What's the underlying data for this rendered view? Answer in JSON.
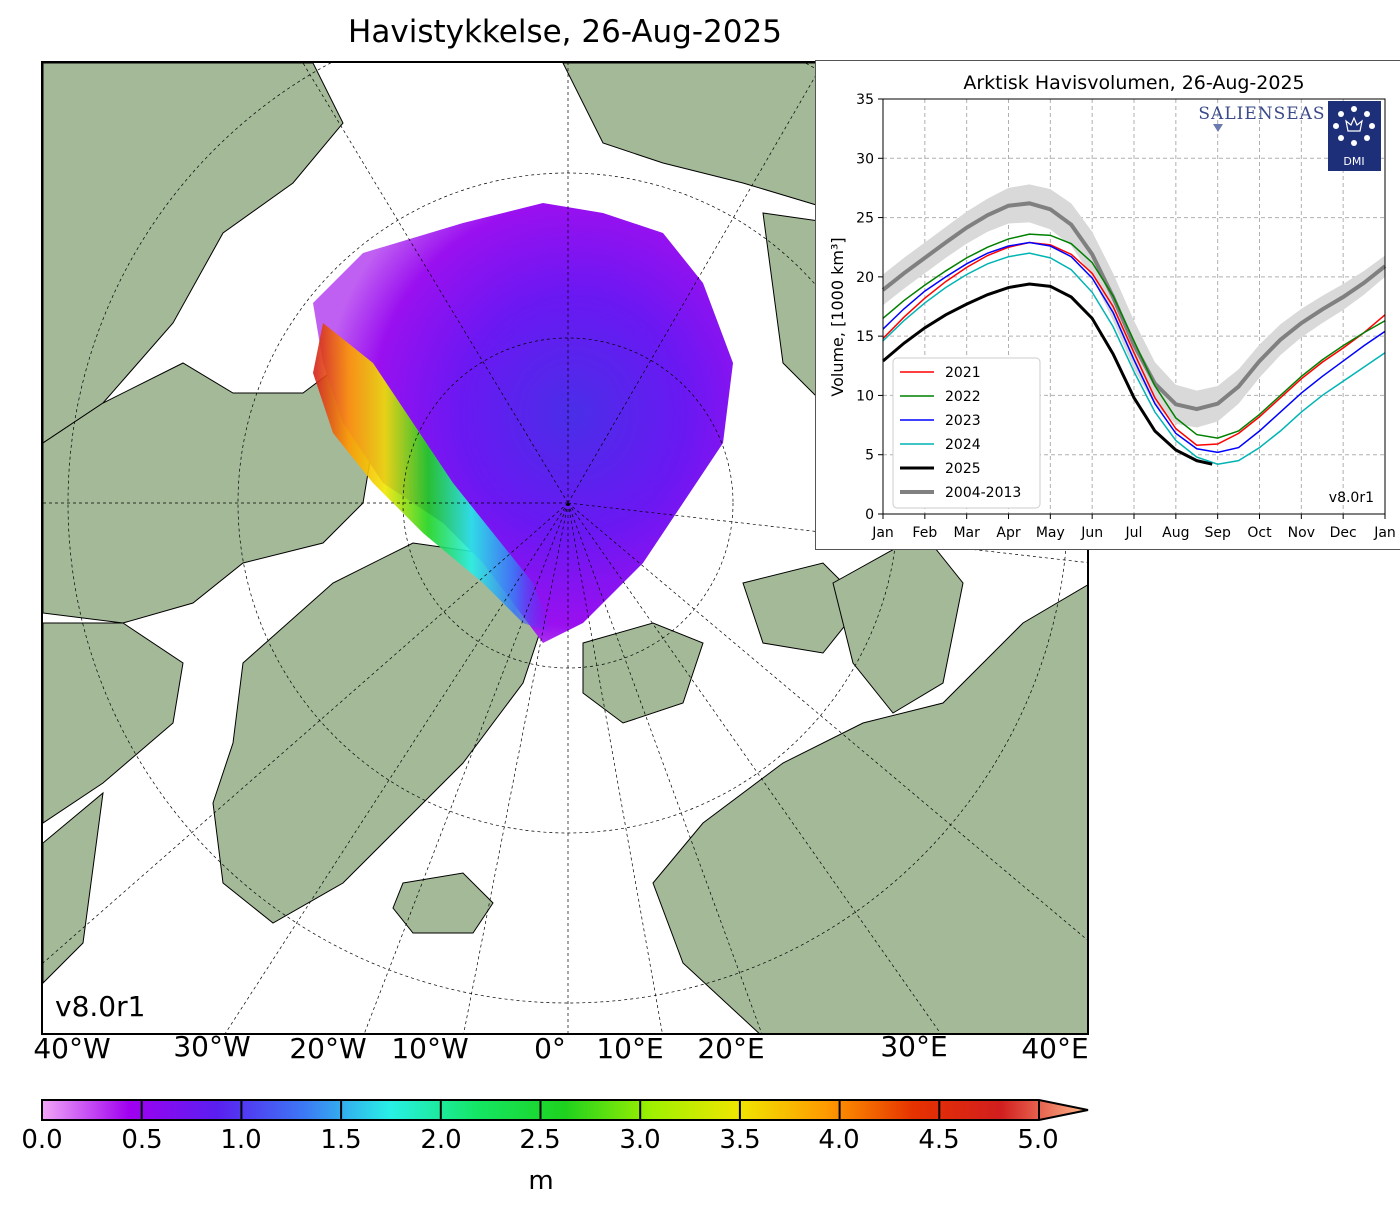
{
  "title": "Havistykkelse, 26-Aug-2025",
  "map": {
    "version_label": "v8.0r1",
    "longitude_labels": [
      "40°W",
      "30°W",
      "20°W",
      "10°W",
      "0°",
      "10°E",
      "20°E",
      "30°E",
      "40°E"
    ]
  },
  "colorbar": {
    "ticks": [
      "0.0",
      "0.5",
      "1.0",
      "1.5",
      "2.0",
      "2.5",
      "3.0",
      "3.5",
      "4.0",
      "4.5",
      "5.0"
    ],
    "unit": "m",
    "colors": [
      "#f2a6f7",
      "#a000f0",
      "#5a1ef0",
      "#3c78f5",
      "#28f0e6",
      "#14e664",
      "#1ed21e",
      "#a0f000",
      "#f0e600",
      "#ff9a00",
      "#e63200",
      "#d21e1e",
      "#ffb98c"
    ]
  },
  "chart_data": {
    "type": "line",
    "title": "Arktisk Havisvolumen, 26-Aug-2025",
    "ylabel": "Volume, [1000 km³]",
    "ylim": [
      0,
      35
    ],
    "yticks": [
      "0",
      "5",
      "10",
      "15",
      "20",
      "25",
      "30",
      "35"
    ],
    "month_labels": [
      "Jan",
      "Feb",
      "Mar",
      "Apr",
      "May",
      "Jun",
      "Jul",
      "Aug",
      "Sep",
      "Oct",
      "Nov",
      "Dec",
      "Jan"
    ],
    "x_unit": "month",
    "grid": true,
    "legend": "lower-left",
    "version_label": "v8.0r1",
    "logos": [
      "SALIENSEAS",
      "DMI"
    ],
    "band": {
      "name": "2004-2013",
      "x": [
        0,
        0.5,
        1,
        1.5,
        2,
        2.5,
        3,
        3.5,
        4,
        4.5,
        5,
        5.5,
        6,
        6.5,
        7,
        7.5,
        8,
        8.5,
        9,
        9.5,
        10,
        10.5,
        11,
        11.5,
        12
      ],
      "low": [
        17.6,
        19.0,
        20.3,
        21.6,
        22.8,
        23.8,
        24.5,
        24.6,
        24.0,
        22.6,
        20.0,
        16.3,
        12.2,
        9.2,
        7.6,
        7.3,
        7.8,
        9.3,
        11.5,
        13.4,
        14.9,
        16.1,
        17.2,
        18.5,
        20.0
      ],
      "high": [
        20.2,
        21.6,
        22.9,
        24.2,
        25.5,
        26.6,
        27.5,
        27.8,
        27.4,
        26.2,
        23.8,
        20.3,
        16.3,
        12.8,
        10.9,
        10.4,
        10.8,
        12.2,
        14.3,
        16.0,
        17.3,
        18.4,
        19.4,
        20.5,
        21.8
      ]
    },
    "series": [
      {
        "name": "2021",
        "color": "#ff0000",
        "x": [
          0,
          0.5,
          1,
          1.5,
          2,
          2.5,
          3,
          3.5,
          4,
          4.5,
          5,
          5.5,
          6,
          6.5,
          7,
          7.5,
          8,
          8.5,
          9,
          9.5,
          10,
          10.5,
          11,
          11.5,
          12
        ],
        "y": [
          14.8,
          16.6,
          18.2,
          19.6,
          20.8,
          21.8,
          22.5,
          22.9,
          22.7,
          21.9,
          20.3,
          17.5,
          13.6,
          9.8,
          7.2,
          5.8,
          5.9,
          6.8,
          8.2,
          9.8,
          11.4,
          12.8,
          14.0,
          15.3,
          16.8
        ]
      },
      {
        "name": "2022",
        "color": "#008000",
        "x": [
          0,
          0.5,
          1,
          1.5,
          2,
          2.5,
          3,
          3.5,
          4,
          4.5,
          5,
          5.5,
          6,
          6.5,
          7,
          7.5,
          8,
          8.5,
          9,
          9.5,
          10,
          10.5,
          11,
          11.5,
          12
        ],
        "y": [
          16.5,
          18.0,
          19.3,
          20.5,
          21.6,
          22.5,
          23.2,
          23.6,
          23.5,
          22.8,
          21.2,
          18.4,
          14.6,
          10.8,
          8.1,
          6.7,
          6.4,
          7.0,
          8.4,
          10.0,
          11.6,
          13.0,
          14.2,
          15.3,
          16.3
        ]
      },
      {
        "name": "2023",
        "color": "#0000ff",
        "x": [
          0,
          0.5,
          1,
          1.5,
          2,
          2.5,
          3,
          3.5,
          4,
          4.5,
          5,
          5.5,
          6,
          6.5,
          7,
          7.5,
          8,
          8.5,
          9,
          9.5,
          10,
          10.5,
          11,
          11.5,
          12
        ],
        "y": [
          15.6,
          17.3,
          18.8,
          20.0,
          21.1,
          22.0,
          22.6,
          22.9,
          22.6,
          21.7,
          19.9,
          17.0,
          13.0,
          9.3,
          6.8,
          5.5,
          5.2,
          5.6,
          7.0,
          8.6,
          10.2,
          11.6,
          12.9,
          14.2,
          15.4
        ]
      },
      {
        "name": "2024",
        "color": "#00b4b4",
        "x": [
          0,
          0.5,
          1,
          1.5,
          2,
          2.5,
          3,
          3.5,
          4,
          4.5,
          5,
          5.5,
          6,
          6.5,
          7,
          7.5,
          8,
          8.5,
          9,
          9.5,
          10,
          10.5,
          11,
          11.5,
          12
        ],
        "y": [
          14.6,
          16.3,
          17.8,
          19.1,
          20.2,
          21.1,
          21.7,
          22.0,
          21.6,
          20.6,
          18.7,
          15.8,
          12.0,
          8.6,
          6.2,
          4.8,
          4.2,
          4.5,
          5.6,
          7.0,
          8.6,
          10.0,
          11.2,
          12.4,
          13.6
        ]
      },
      {
        "name": "2025",
        "color": "#000000",
        "x": [
          0,
          0.5,
          1,
          1.5,
          2,
          2.5,
          3,
          3.5,
          4,
          4.5,
          5,
          5.5,
          6,
          6.5,
          7,
          7.5,
          7.87
        ],
        "y": [
          12.9,
          14.4,
          15.7,
          16.8,
          17.7,
          18.5,
          19.1,
          19.4,
          19.2,
          18.3,
          16.5,
          13.5,
          9.8,
          7.0,
          5.4,
          4.5,
          4.2
        ]
      }
    ]
  }
}
